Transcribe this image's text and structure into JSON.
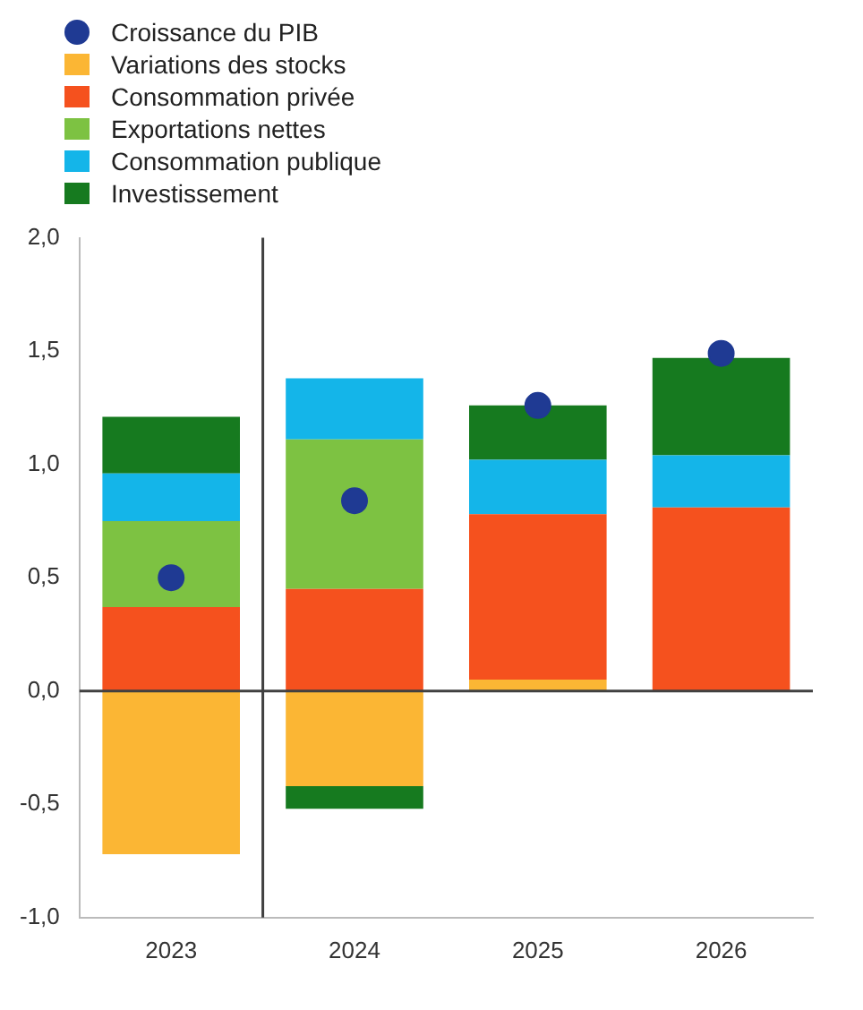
{
  "chart_data": {
    "type": "bar",
    "stacked": true,
    "categories": [
      "2023",
      "2024",
      "2025",
      "2026"
    ],
    "series": [
      {
        "name": "Croissance du PIB",
        "type": "scatter",
        "marker": "circle",
        "color": "#1f3a93",
        "values": [
          0.5,
          0.84,
          1.26,
          1.49
        ]
      },
      {
        "name": "Variations des stocks",
        "color": "#fbb634",
        "values": [
          -0.72,
          -0.42,
          0.05,
          0
        ]
      },
      {
        "name": "Consommation privée",
        "color": "#f5511e",
        "values": [
          0.37,
          0.45,
          0.73,
          0.81
        ]
      },
      {
        "name": "Exportations nettes",
        "color": "#7dc242",
        "values": [
          0.38,
          0.66,
          0,
          0
        ]
      },
      {
        "name": "Consommation publique",
        "color": "#14b5e9",
        "values": [
          0.21,
          0.27,
          0.24,
          0.23
        ]
      },
      {
        "name": "Investissement",
        "color": "#167a1f",
        "values": [
          0.25,
          -0.1,
          0.24,
          0.43
        ]
      }
    ],
    "ylim": [
      -1,
      2
    ],
    "yticks": [
      {
        "value": -1,
        "label": "-1,0"
      },
      {
        "value": -0.5,
        "label": "-0,5"
      },
      {
        "value": 0,
        "label": "0,0"
      },
      {
        "value": 0.5,
        "label": "0,5"
      },
      {
        "value": 1,
        "label": "1,0"
      },
      {
        "value": 1.5,
        "label": "1,5"
      },
      {
        "value": 2,
        "label": "2,0"
      }
    ],
    "ref_lines": [
      {
        "axis": "y",
        "value": 0,
        "color": "#404040"
      }
    ],
    "grid": false,
    "legend": "top left"
  }
}
